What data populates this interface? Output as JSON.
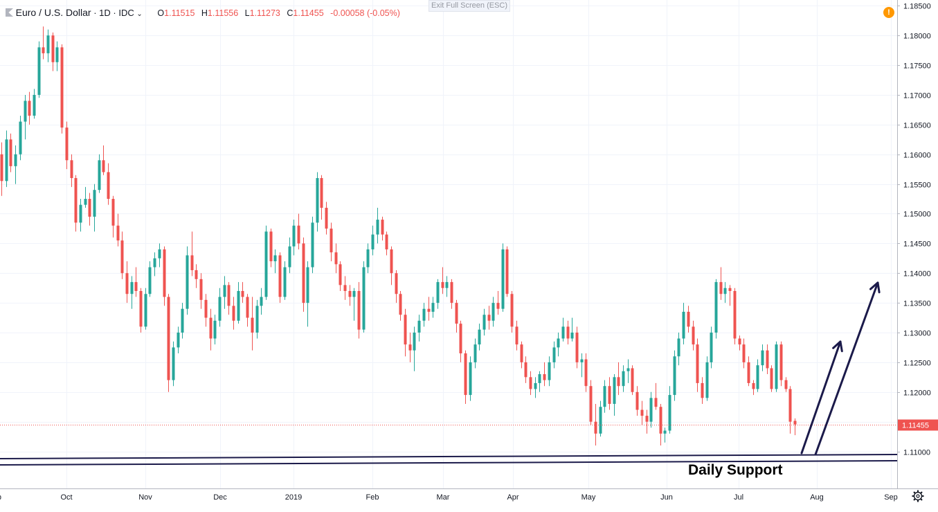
{
  "header": {
    "symbol": "Euro / U.S. Dollar",
    "interval": "1D",
    "exchange": "IDC",
    "open_label": "O",
    "open": "1.11515",
    "high_label": "H",
    "high": "1.11556",
    "low_label": "L",
    "low": "1.11273",
    "close_label": "C",
    "close": "1.11455",
    "change": "-0.00058 (-0.05%)"
  },
  "exit_fullscreen": "Exit Full Screen (ESC)",
  "alert_icon": "warning-icon",
  "settings_icon": "gear-icon",
  "colors": {
    "up": "#26a69a",
    "down": "#ef5350",
    "annotation": "#1b1a4a",
    "price_badge": "#ef5350"
  },
  "annotation_text": "Daily Support",
  "chart_data": {
    "type": "candlestick",
    "ylim": [
      1.1075,
      1.1855
    ],
    "y_ticks": [
      "1.18500",
      "1.18000",
      "1.17500",
      "1.17000",
      "1.16500",
      "1.16000",
      "1.15500",
      "1.15000",
      "1.14500",
      "1.14000",
      "1.13500",
      "1.13000",
      "1.12500",
      "1.12000",
      "1.11500",
      "1.11000"
    ],
    "x_labels": [
      "p",
      "Oct",
      "Nov",
      "Dec",
      "2019",
      "Feb",
      "Mar",
      "Apr",
      "May",
      "Jun",
      "Jul",
      "Aug",
      "Sep"
    ],
    "last_price": "1.11455",
    "candles": [
      [
        1.16,
        1.162,
        1.153,
        1.1555
      ],
      [
        1.1555,
        1.164,
        1.1545,
        1.1625
      ],
      [
        1.1625,
        1.1635,
        1.157,
        1.158
      ],
      [
        1.158,
        1.1615,
        1.155,
        1.16
      ],
      [
        1.16,
        1.1665,
        1.159,
        1.1655
      ],
      [
        1.1655,
        1.17,
        1.1625,
        1.169
      ],
      [
        1.169,
        1.1705,
        1.165,
        1.1665
      ],
      [
        1.1665,
        1.171,
        1.166,
        1.17
      ],
      [
        1.17,
        1.179,
        1.1695,
        1.178
      ],
      [
        1.178,
        1.1815,
        1.176,
        1.177
      ],
      [
        1.177,
        1.181,
        1.1755,
        1.18
      ],
      [
        1.18,
        1.1805,
        1.174,
        1.1755
      ],
      [
        1.1755,
        1.179,
        1.174,
        1.178
      ],
      [
        1.178,
        1.1785,
        1.1635,
        1.1645
      ],
      [
        1.1645,
        1.1655,
        1.1575,
        1.159
      ],
      [
        1.159,
        1.16,
        1.1545,
        1.156
      ],
      [
        1.156,
        1.1565,
        1.147,
        1.1485
      ],
      [
        1.1485,
        1.1525,
        1.147,
        1.1515
      ],
      [
        1.1515,
        1.1545,
        1.151,
        1.1525
      ],
      [
        1.1525,
        1.1535,
        1.148,
        1.1495
      ],
      [
        1.1495,
        1.155,
        1.147,
        1.154
      ],
      [
        1.154,
        1.16,
        1.1535,
        1.159
      ],
      [
        1.159,
        1.1615,
        1.1565,
        1.157
      ],
      [
        1.157,
        1.1585,
        1.1515,
        1.1525
      ],
      [
        1.1525,
        1.153,
        1.146,
        1.148
      ],
      [
        1.148,
        1.15,
        1.1445,
        1.1455
      ],
      [
        1.1455,
        1.147,
        1.139,
        1.14
      ],
      [
        1.14,
        1.142,
        1.135,
        1.1365
      ],
      [
        1.1365,
        1.1395,
        1.134,
        1.1385
      ],
      [
        1.1385,
        1.141,
        1.136,
        1.137
      ],
      [
        1.137,
        1.1375,
        1.13,
        1.131
      ],
      [
        1.131,
        1.1375,
        1.1305,
        1.1365
      ],
      [
        1.1365,
        1.142,
        1.136,
        1.141
      ],
      [
        1.141,
        1.1435,
        1.1395,
        1.1425
      ],
      [
        1.1425,
        1.145,
        1.141,
        1.144
      ],
      [
        1.144,
        1.1445,
        1.1345,
        1.136
      ],
      [
        1.136,
        1.1365,
        1.12,
        1.122
      ],
      [
        1.122,
        1.1285,
        1.121,
        1.1275
      ],
      [
        1.1275,
        1.131,
        1.1265,
        1.13
      ],
      [
        1.13,
        1.135,
        1.129,
        1.134
      ],
      [
        1.134,
        1.1445,
        1.133,
        1.143
      ],
      [
        1.143,
        1.147,
        1.1395,
        1.1405
      ],
      [
        1.1405,
        1.1415,
        1.1375,
        1.139
      ],
      [
        1.139,
        1.14,
        1.134,
        1.1355
      ],
      [
        1.1355,
        1.1365,
        1.131,
        1.1325
      ],
      [
        1.1325,
        1.134,
        1.127,
        1.129
      ],
      [
        1.129,
        1.133,
        1.128,
        1.132
      ],
      [
        1.132,
        1.1375,
        1.131,
        1.136
      ],
      [
        1.136,
        1.1395,
        1.134,
        1.138
      ],
      [
        1.138,
        1.1385,
        1.133,
        1.1345
      ],
      [
        1.1345,
        1.136,
        1.1305,
        1.132
      ],
      [
        1.132,
        1.1385,
        1.1315,
        1.137
      ],
      [
        1.137,
        1.1385,
        1.135,
        1.136
      ],
      [
        1.136,
        1.1365,
        1.131,
        1.1325
      ],
      [
        1.1325,
        1.136,
        1.127,
        1.13
      ],
      [
        1.13,
        1.1355,
        1.129,
        1.1345
      ],
      [
        1.1345,
        1.1375,
        1.133,
        1.136
      ],
      [
        1.136,
        1.148,
        1.1355,
        1.147
      ],
      [
        1.147,
        1.1475,
        1.141,
        1.142
      ],
      [
        1.142,
        1.144,
        1.14,
        1.143
      ],
      [
        1.143,
        1.1435,
        1.135,
        1.136
      ],
      [
        1.136,
        1.142,
        1.1355,
        1.141
      ],
      [
        1.141,
        1.146,
        1.14,
        1.1445
      ],
      [
        1.1445,
        1.149,
        1.143,
        1.148
      ],
      [
        1.148,
        1.15,
        1.144,
        1.145
      ],
      [
        1.145,
        1.146,
        1.1335,
        1.135
      ],
      [
        1.135,
        1.142,
        1.131,
        1.141
      ],
      [
        1.141,
        1.1495,
        1.14,
        1.1485
      ],
      [
        1.1485,
        1.157,
        1.147,
        1.156
      ],
      [
        1.156,
        1.1565,
        1.149,
        1.151
      ],
      [
        1.151,
        1.152,
        1.1465,
        1.1475
      ],
      [
        1.1475,
        1.1485,
        1.142,
        1.1435
      ],
      [
        1.1435,
        1.145,
        1.14,
        1.1415
      ],
      [
        1.1415,
        1.142,
        1.137,
        1.138
      ],
      [
        1.138,
        1.1395,
        1.1355,
        1.137
      ],
      [
        1.137,
        1.138,
        1.1345,
        1.136
      ],
      [
        1.136,
        1.1375,
        1.132,
        1.137
      ],
      [
        1.137,
        1.1385,
        1.129,
        1.1305
      ],
      [
        1.1305,
        1.142,
        1.13,
        1.141
      ],
      [
        1.141,
        1.145,
        1.14,
        1.144
      ],
      [
        1.144,
        1.148,
        1.143,
        1.1465
      ],
      [
        1.1465,
        1.151,
        1.145,
        1.149
      ],
      [
        1.149,
        1.1495,
        1.1455,
        1.1465
      ],
      [
        1.1465,
        1.147,
        1.143,
        1.144
      ],
      [
        1.144,
        1.1445,
        1.138,
        1.14
      ],
      [
        1.14,
        1.1405,
        1.135,
        1.1365
      ],
      [
        1.1365,
        1.137,
        1.132,
        1.133
      ],
      [
        1.133,
        1.134,
        1.126,
        1.128
      ],
      [
        1.128,
        1.13,
        1.125,
        1.127
      ],
      [
        1.127,
        1.131,
        1.1235,
        1.13
      ],
      [
        1.13,
        1.133,
        1.1285,
        1.132
      ],
      [
        1.132,
        1.135,
        1.131,
        1.134
      ],
      [
        1.134,
        1.136,
        1.132,
        1.1335
      ],
      [
        1.1335,
        1.136,
        1.1325,
        1.135
      ],
      [
        1.135,
        1.139,
        1.134,
        1.1385
      ],
      [
        1.1385,
        1.141,
        1.1365,
        1.1375
      ],
      [
        1.1375,
        1.1395,
        1.136,
        1.1385
      ],
      [
        1.1385,
        1.139,
        1.134,
        1.135
      ],
      [
        1.135,
        1.1355,
        1.13,
        1.1315
      ],
      [
        1.1315,
        1.132,
        1.125,
        1.1265
      ],
      [
        1.1265,
        1.127,
        1.118,
        1.1195
      ],
      [
        1.1195,
        1.126,
        1.1185,
        1.125
      ],
      [
        1.125,
        1.129,
        1.124,
        1.128
      ],
      [
        1.128,
        1.1315,
        1.127,
        1.1305
      ],
      [
        1.1305,
        1.134,
        1.1295,
        1.133
      ],
      [
        1.133,
        1.1345,
        1.1305,
        1.132
      ],
      [
        1.132,
        1.136,
        1.131,
        1.135
      ],
      [
        1.135,
        1.137,
        1.133,
        1.134
      ],
      [
        1.134,
        1.145,
        1.1335,
        1.144
      ],
      [
        1.144,
        1.1445,
        1.136,
        1.1365
      ],
      [
        1.1365,
        1.137,
        1.13,
        1.131
      ],
      [
        1.131,
        1.132,
        1.127,
        1.128
      ],
      [
        1.128,
        1.1285,
        1.124,
        1.125
      ],
      [
        1.125,
        1.126,
        1.1215,
        1.1225
      ],
      [
        1.1225,
        1.1235,
        1.1195,
        1.1205
      ],
      [
        1.1205,
        1.1225,
        1.119,
        1.1215
      ],
      [
        1.1215,
        1.1235,
        1.12,
        1.123
      ],
      [
        1.123,
        1.125,
        1.121,
        1.122
      ],
      [
        1.122,
        1.126,
        1.121,
        1.125
      ],
      [
        1.125,
        1.1285,
        1.124,
        1.1275
      ],
      [
        1.1275,
        1.13,
        1.126,
        1.129
      ],
      [
        1.129,
        1.1325,
        1.1285,
        1.131
      ],
      [
        1.131,
        1.132,
        1.128,
        1.129
      ],
      [
        1.129,
        1.1325,
        1.1285,
        1.13
      ],
      [
        1.13,
        1.131,
        1.124,
        1.125
      ],
      [
        1.125,
        1.1265,
        1.1225,
        1.1255
      ],
      [
        1.1255,
        1.1265,
        1.12,
        1.121
      ],
      [
        1.121,
        1.122,
        1.1145,
        1.115
      ],
      [
        1.115,
        1.118,
        1.111,
        1.113
      ],
      [
        1.113,
        1.1185,
        1.1125,
        1.1175
      ],
      [
        1.1175,
        1.122,
        1.1165,
        1.121
      ],
      [
        1.121,
        1.1225,
        1.117,
        1.118
      ],
      [
        1.118,
        1.123,
        1.116,
        1.1225
      ],
      [
        1.1225,
        1.125,
        1.1195,
        1.121
      ],
      [
        1.121,
        1.1245,
        1.12,
        1.1235
      ],
      [
        1.1235,
        1.1255,
        1.1215,
        1.124
      ],
      [
        1.124,
        1.1245,
        1.1195,
        1.12
      ],
      [
        1.12,
        1.121,
        1.116,
        1.117
      ],
      [
        1.117,
        1.1185,
        1.1145,
        1.116
      ],
      [
        1.116,
        1.117,
        1.113,
        1.115
      ],
      [
        1.115,
        1.12,
        1.114,
        1.119
      ],
      [
        1.119,
        1.1215,
        1.117,
        1.1175
      ],
      [
        1.1175,
        1.118,
        1.111,
        1.113
      ],
      [
        1.113,
        1.114,
        1.1115,
        1.1135
      ],
      [
        1.1135,
        1.121,
        1.113,
        1.1195
      ],
      [
        1.1195,
        1.127,
        1.1185,
        1.126
      ],
      [
        1.126,
        1.13,
        1.1245,
        1.129
      ],
      [
        1.129,
        1.135,
        1.128,
        1.1335
      ],
      [
        1.1335,
        1.1345,
        1.13,
        1.131
      ],
      [
        1.131,
        1.132,
        1.127,
        1.128
      ],
      [
        1.128,
        1.129,
        1.12,
        1.1215
      ],
      [
        1.1215,
        1.1225,
        1.118,
        1.119
      ],
      [
        1.119,
        1.126,
        1.1185,
        1.125
      ],
      [
        1.125,
        1.131,
        1.124,
        1.13
      ],
      [
        1.13,
        1.139,
        1.129,
        1.1385
      ],
      [
        1.1385,
        1.141,
        1.1355,
        1.1365
      ],
      [
        1.1365,
        1.1385,
        1.135,
        1.1375
      ],
      [
        1.1375,
        1.138,
        1.1345,
        1.137
      ],
      [
        1.137,
        1.1375,
        1.128,
        1.129
      ],
      [
        1.129,
        1.1295,
        1.127,
        1.128
      ],
      [
        1.128,
        1.129,
        1.124,
        1.125
      ],
      [
        1.125,
        1.126,
        1.121,
        1.1215
      ],
      [
        1.1215,
        1.122,
        1.1195,
        1.1205
      ],
      [
        1.1205,
        1.1255,
        1.12,
        1.1245
      ],
      [
        1.1245,
        1.128,
        1.1235,
        1.127
      ],
      [
        1.127,
        1.128,
        1.123,
        1.124
      ],
      [
        1.124,
        1.1245,
        1.12,
        1.1205
      ],
      [
        1.1205,
        1.1285,
        1.12,
        1.128
      ],
      [
        1.128,
        1.1285,
        1.121,
        1.122
      ],
      [
        1.122,
        1.1225,
        1.12,
        1.1205
      ],
      [
        1.1205,
        1.121,
        1.113,
        1.115
      ],
      [
        1.11515,
        1.11556,
        1.11273,
        1.11455
      ]
    ]
  }
}
